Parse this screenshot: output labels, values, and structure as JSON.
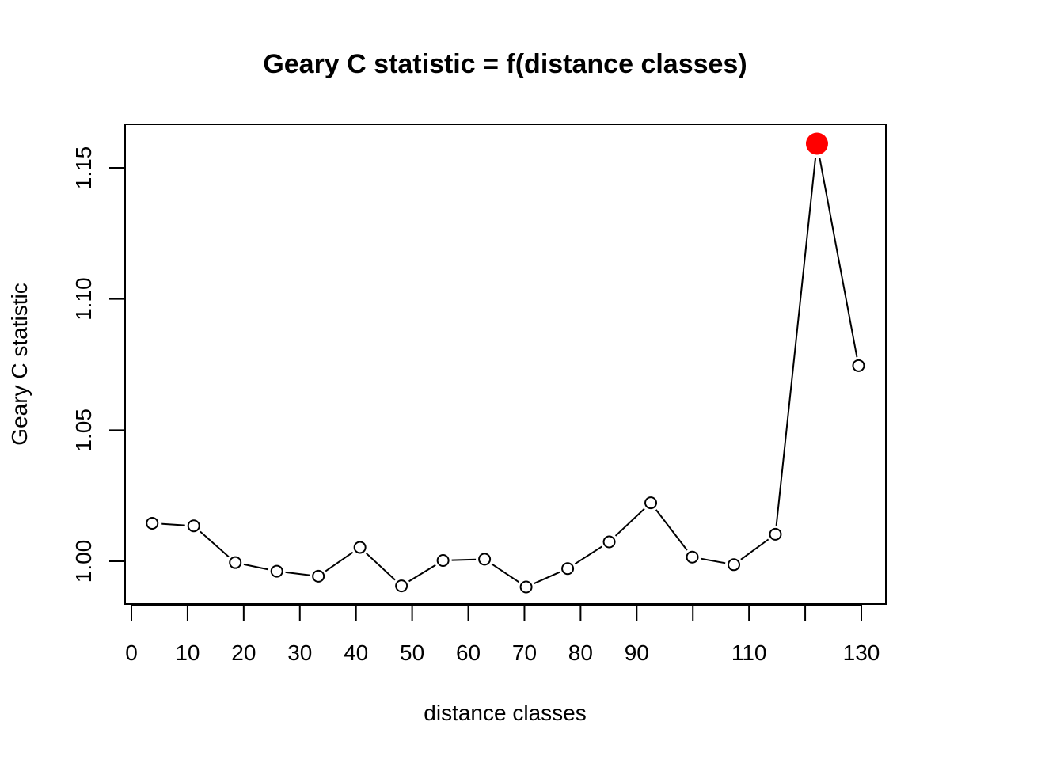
{
  "chart_data": {
    "type": "line",
    "title": "Geary C statistic = f(distance classes)",
    "xlabel": "distance classes",
    "ylabel": "Geary C statistic",
    "xlim": [
      0,
      130
    ],
    "ylim": [
      0.99,
      1.16
    ],
    "x_ticks": [
      0,
      10,
      20,
      30,
      40,
      50,
      60,
      70,
      80,
      90,
      100,
      110,
      120,
      130
    ],
    "x_tick_labels": [
      "0",
      "10",
      "20",
      "30",
      "40",
      "50",
      "60",
      "70",
      "80",
      "90",
      "",
      "110",
      "",
      "130"
    ],
    "y_ticks": [
      1.0,
      1.05,
      1.1,
      1.15
    ],
    "y_tick_labels": [
      "1.00",
      "1.05",
      "1.10",
      "1.15"
    ],
    "grid": false,
    "line_color": "#000000",
    "marker": "open-circle",
    "highlight_color": "#ff0000",
    "series": [
      {
        "x": [
          3.7,
          11.1,
          18.5,
          25.9,
          33.3,
          40.7,
          48.1,
          55.5,
          62.9,
          70.3,
          77.7,
          85.1,
          92.5,
          99.9,
          107.3,
          114.7,
          122.1,
          129.5
        ],
        "values": [
          1.0145,
          1.0135,
          0.9995,
          0.9962,
          0.9943,
          1.0053,
          0.9906,
          1.0003,
          1.0008,
          0.9902,
          0.9972,
          1.0074,
          1.0223,
          1.0016,
          0.9987,
          1.0103,
          1.1592,
          1.0746
        ],
        "highlight_indices": [
          16
        ]
      }
    ]
  }
}
